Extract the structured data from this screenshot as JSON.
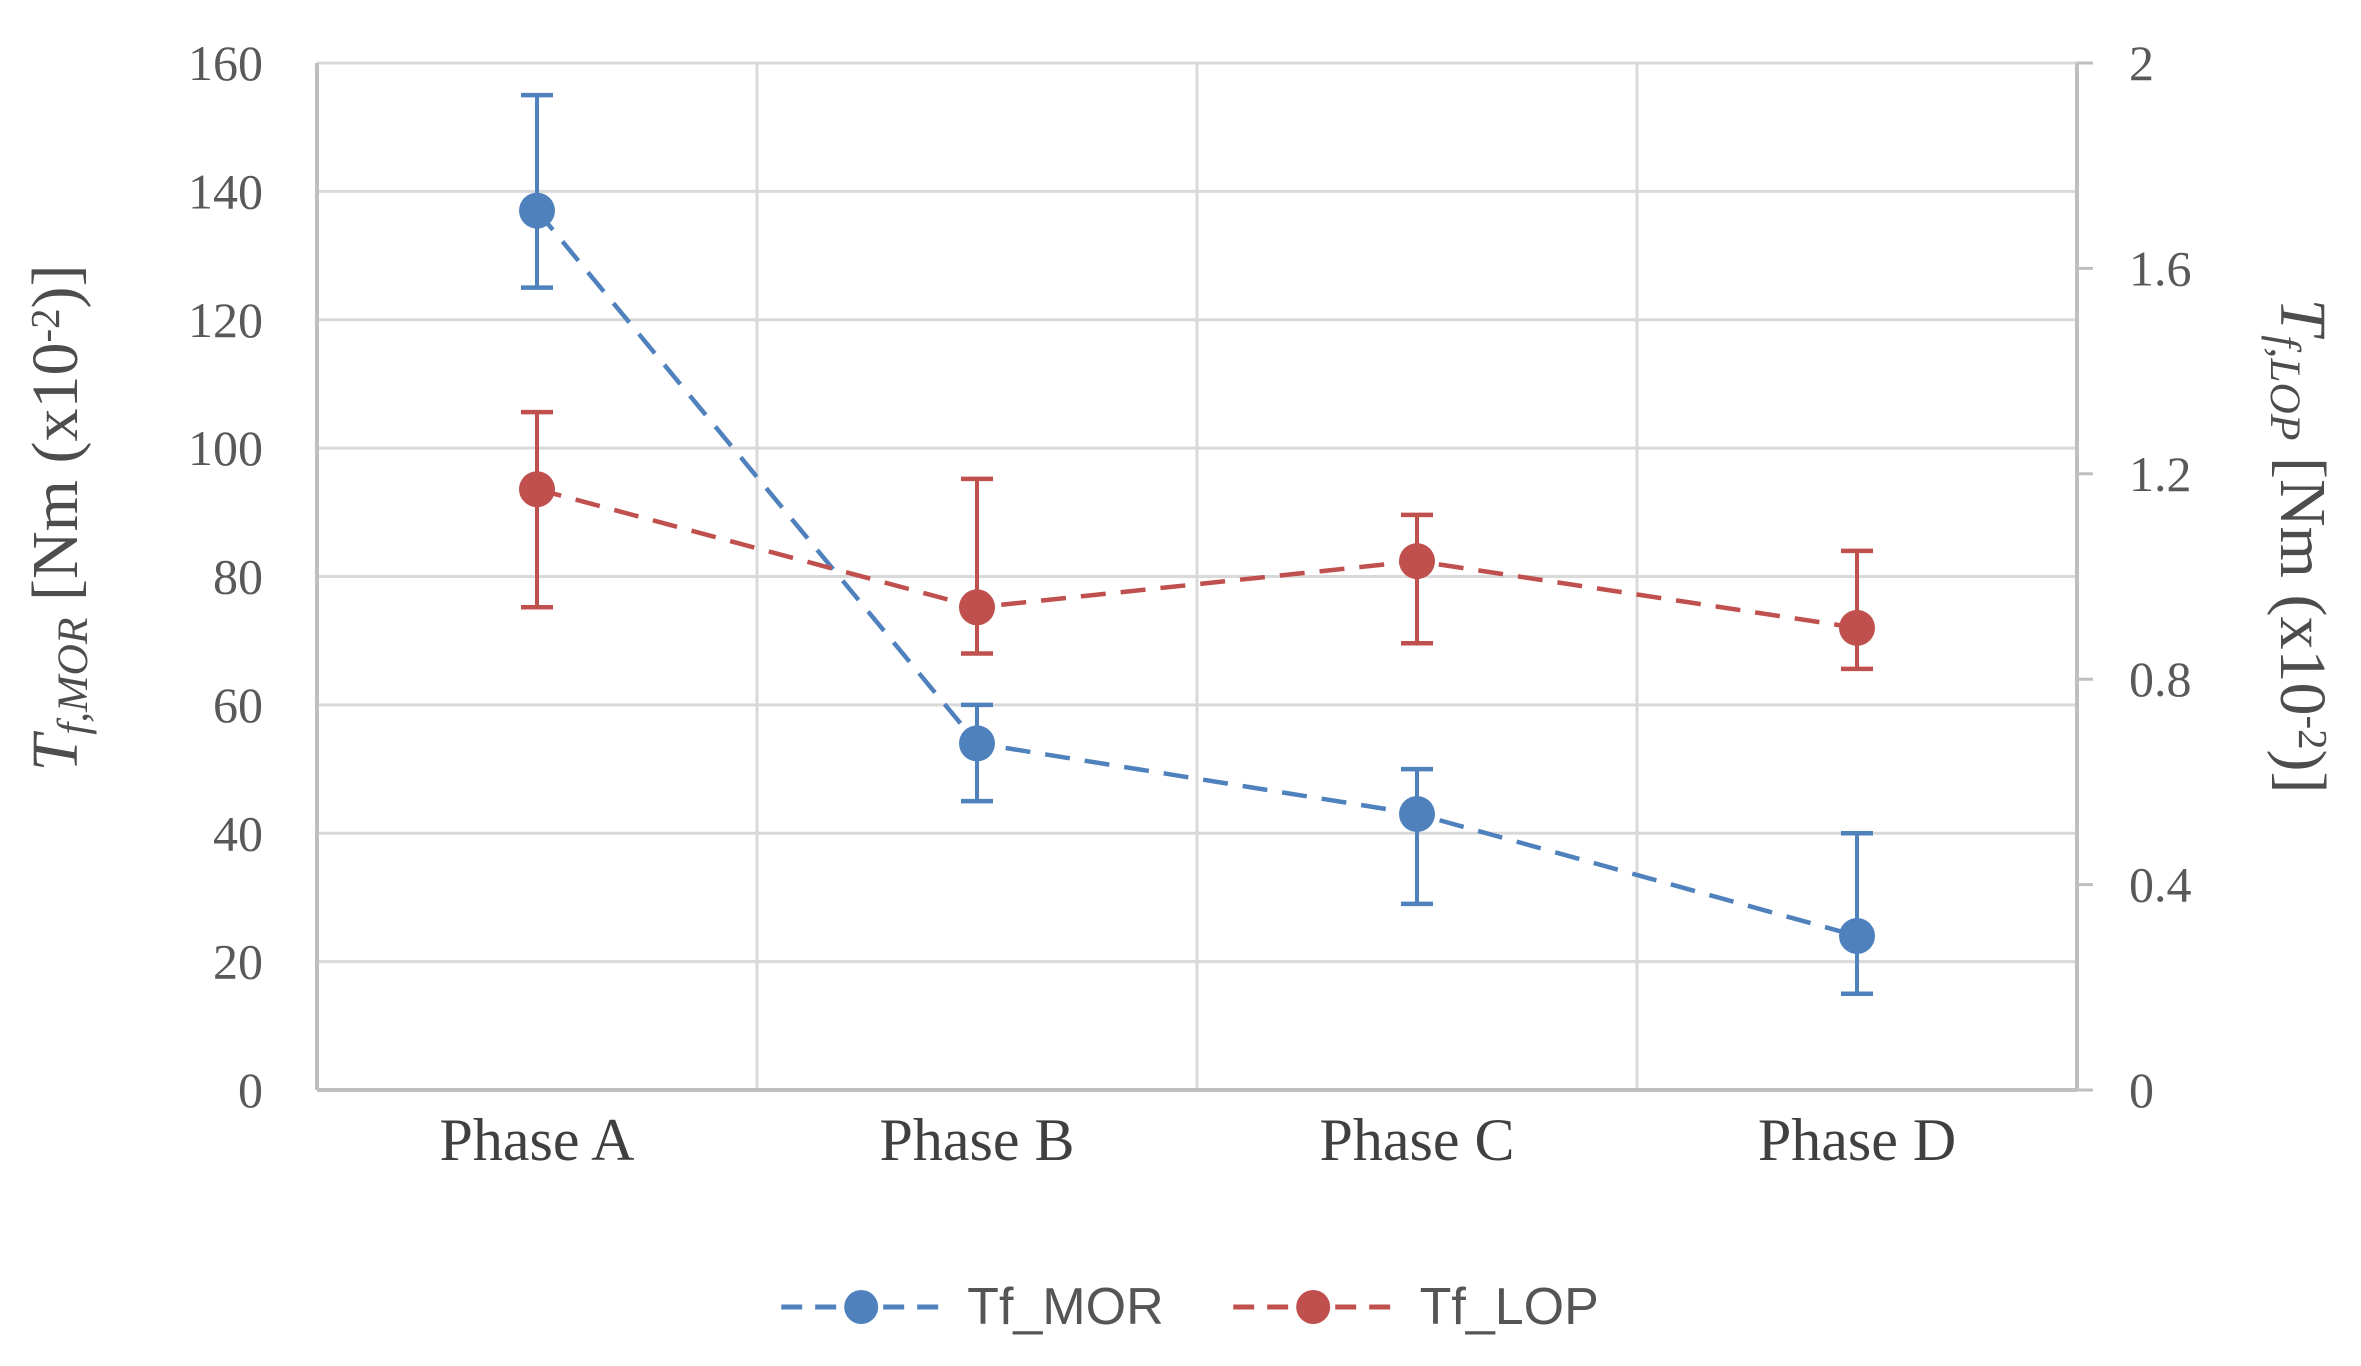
{
  "titles": {
    "left": {
      "symbol": "T",
      "subscript": "f,MOR",
      "units_open": " [Nm (x10",
      "units_sup": "-2",
      "units_close": ")]"
    },
    "right": {
      "symbol": "T",
      "subscript": "f,LOP",
      "units_open": " [Nm (x10",
      "units_sup": "-2",
      "units_close": ")]"
    }
  },
  "legend": {
    "items": [
      {
        "label": "Tf_MOR",
        "color": "#4F81BD"
      },
      {
        "label": "Tf_LOP",
        "color": "#C0504D"
      }
    ]
  },
  "chart_data": {
    "type": "line",
    "line_style": "dashed lines with circle markers and vertical error bars",
    "grid": true,
    "legend_position": "bottom center",
    "categories": [
      "Phase A",
      "Phase B",
      "Phase C",
      "Phase D"
    ],
    "left_axis": {
      "title": "Tf,MOR [Nm (x10-2)]",
      "min": 0,
      "max": 160,
      "ticks": [
        "0",
        "20",
        "40",
        "60",
        "80",
        "100",
        "120",
        "140",
        "160"
      ]
    },
    "right_axis": {
      "title": "Tf,LOP [Nm (x10-2)]",
      "min": 0,
      "max": 2,
      "ticks": [
        "0",
        "0.4",
        "0.8",
        "1.2",
        "1.6",
        "2"
      ]
    },
    "series": [
      {
        "name": "Tf_MOR",
        "axis": "left",
        "color": "#4F81BD",
        "values": [
          137,
          54,
          43,
          24
        ],
        "error_upper": [
          155,
          60,
          50,
          40
        ],
        "error_lower": [
          125,
          45,
          29,
          15
        ]
      },
      {
        "name": "Tf_LOP",
        "axis": "right",
        "color": "#C0504D",
        "values": [
          1.17,
          0.94,
          1.03,
          0.9
        ],
        "error_upper": [
          1.32,
          1.19,
          1.12,
          1.05
        ],
        "error_lower": [
          0.94,
          0.85,
          0.87,
          0.82
        ]
      }
    ],
    "colors": {
      "gridline": "#D9D9D9",
      "axis_line": "#BFBFBF",
      "tick_text": "#595959",
      "category_text": "#404040",
      "legend_text": "#555555",
      "title_text": "#4D4D4D"
    }
  }
}
